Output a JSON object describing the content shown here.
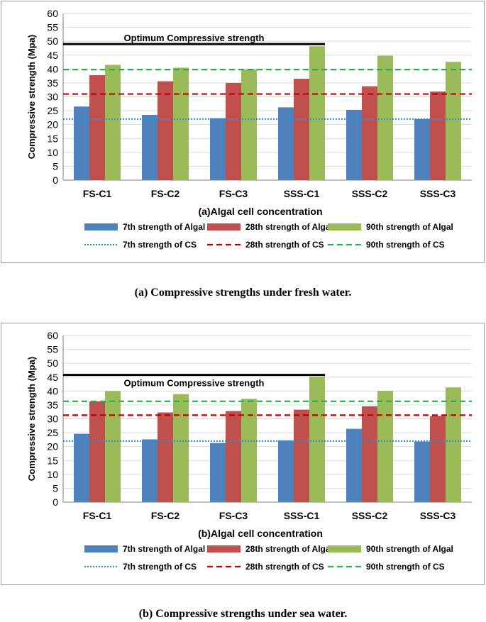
{
  "figures": [
    {
      "caption": "(a)  Compressive strengths under fresh water."
    },
    {
      "caption": "(b) Compressive strengths under sea water."
    }
  ],
  "chart_data": [
    {
      "type": "bar",
      "title": "",
      "xlabel": "(a)Algal cell concentration",
      "ylabel": "Compressive strength (Mpa)",
      "ylim": [
        0,
        60
      ],
      "yticks": [
        0,
        5,
        10,
        15,
        20,
        25,
        30,
        35,
        40,
        45,
        50,
        55,
        60
      ],
      "grid": "horizontal",
      "legend_position": "bottom",
      "categories": [
        "FS-C1",
        "FS-C2",
        "FS-C3",
        "SSS-C1",
        "SSS-C2",
        "SSS-C3"
      ],
      "series": [
        {
          "name": "7th strength of Algal",
          "color": "#4f81bd",
          "values": [
            26.5,
            23.5,
            22.3,
            26.2,
            25.3,
            22.0
          ]
        },
        {
          "name": "28th strength of Algal",
          "color": "#c0504d",
          "values": [
            37.8,
            35.6,
            35.0,
            36.5,
            33.8,
            31.9
          ]
        },
        {
          "name": "90th strength of Algal",
          "color": "#9bbb59",
          "values": [
            41.5,
            40.5,
            39.8,
            48.2,
            44.8,
            42.6
          ]
        }
      ],
      "reference_lines": [
        {
          "name": "7th strength of CS",
          "color": "#2e8ed0",
          "style": "dotted",
          "value": 22.0
        },
        {
          "name": "28th strength of CS",
          "color": "#c00000",
          "style": "dashed",
          "value": 31.0
        },
        {
          "name": "90th strength of CS",
          "color": "#22b14c",
          "style": "dashed",
          "value": 39.8
        }
      ],
      "annotation": {
        "text": "Optimum Compressive strength",
        "value": 49.0,
        "from_category": "FS-C1",
        "to_category": "SSS-C1"
      }
    },
    {
      "type": "bar",
      "title": "",
      "xlabel": "(b)Algal cell concentration",
      "ylabel": "Compressive strength (Mpa)",
      "ylim": [
        0,
        60
      ],
      "yticks": [
        0,
        5,
        10,
        15,
        20,
        25,
        30,
        35,
        40,
        45,
        50,
        55,
        60
      ],
      "grid": "horizontal",
      "legend_position": "bottom",
      "categories": [
        "FS-C1",
        "FS-C2",
        "FS-C3",
        "SSS-C1",
        "SSS-C2",
        "SSS-C3"
      ],
      "series": [
        {
          "name": "7th strength of Algal",
          "color": "#4f81bd",
          "values": [
            24.6,
            22.6,
            21.3,
            22.2,
            26.4,
            21.8
          ]
        },
        {
          "name": "28th strength of Algal",
          "color": "#c0504d",
          "values": [
            36.3,
            32.3,
            32.8,
            33.3,
            34.5,
            31.0
          ]
        },
        {
          "name": "90th strength of Algal",
          "color": "#9bbb59",
          "values": [
            40.0,
            38.9,
            37.2,
            45.2,
            40.1,
            41.3
          ]
        }
      ],
      "reference_lines": [
        {
          "name": "7th strength of CS",
          "color": "#2e8ed0",
          "style": "dotted",
          "value": 22.0
        },
        {
          "name": "28th strength of CS",
          "color": "#c00000",
          "style": "dashed",
          "value": 31.3
        },
        {
          "name": "90th strength of CS",
          "color": "#22b14c",
          "style": "dashed",
          "value": 36.3
        }
      ],
      "annotation": {
        "text": "Optimum Compressive strength",
        "value": 45.8,
        "from_category": "FS-C1",
        "to_category": "SSS-C1"
      }
    }
  ]
}
